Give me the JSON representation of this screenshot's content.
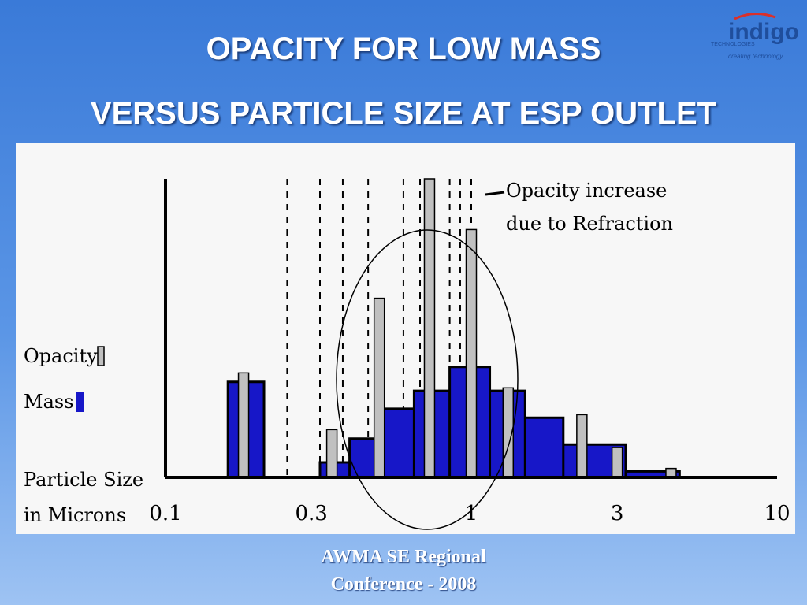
{
  "slide": {
    "title_line1": "OPACITY FOR LOW MASS",
    "title_line2": "VERSUS PARTICLE SIZE AT ESP OUTLET",
    "footer_line1": "AWMA SE Regional",
    "footer_line2": "Conference - 2008"
  },
  "logo": {
    "name": "indigo",
    "sub": "TECHNOLOGIES",
    "tagline": "creating technology",
    "colors": {
      "brand": "#1f4e9c",
      "arc": "#d9302a"
    }
  },
  "colors": {
    "mass": "#1717c8",
    "opacity": "#c0c0c0",
    "axis": "#000000"
  },
  "chart_data": {
    "type": "bar",
    "title": "",
    "x_scale": "log",
    "xlim": [
      0.1,
      10
    ],
    "x_ticks": [
      {
        "value": 0.1,
        "label": "0.1"
      },
      {
        "value": 0.3,
        "label": "0.3"
      },
      {
        "value": 1,
        "label": "1"
      },
      {
        "value": 3,
        "label": "3"
      },
      {
        "value": 10,
        "label": "10"
      }
    ],
    "xlabel_line1": "Particle Size",
    "xlabel_line2": "in Microns",
    "legend": [
      {
        "name": "Opacity",
        "color": "#c0c0c0"
      },
      {
        "name": "Mass",
        "color": "#1717c8"
      }
    ],
    "annotation": {
      "line1": "Opacity increase",
      "line2": "due to Refraction"
    },
    "mass_bins": [
      {
        "x0": 0.16,
        "x1": 0.21,
        "value": 32
      },
      {
        "x0": 0.32,
        "x1": 0.4,
        "value": 5
      },
      {
        "x0": 0.4,
        "x1": 0.5,
        "value": 13
      },
      {
        "x0": 0.5,
        "x1": 0.65,
        "value": 23
      },
      {
        "x0": 0.65,
        "x1": 0.85,
        "value": 29
      },
      {
        "x0": 0.85,
        "x1": 1.15,
        "value": 37
      },
      {
        "x0": 1.15,
        "x1": 1.5,
        "value": 29
      },
      {
        "x0": 1.5,
        "x1": 2.0,
        "value": 20
      },
      {
        "x0": 2.0,
        "x1": 3.2,
        "value": 11
      },
      {
        "x0": 3.2,
        "x1": 4.8,
        "value": 2
      }
    ],
    "opacity_bars": [
      {
        "x": 0.18,
        "value": 35
      },
      {
        "x": 0.35,
        "value": 16
      },
      {
        "x": 0.5,
        "value": 60
      },
      {
        "x": 0.73,
        "value": 100
      },
      {
        "x": 1.0,
        "value": 83
      },
      {
        "x": 1.32,
        "value": 30
      },
      {
        "x": 2.3,
        "value": 21
      },
      {
        "x": 3.0,
        "value": 10
      },
      {
        "x": 4.5,
        "value": 3
      }
    ],
    "reference_lines": [
      0.25,
      0.32,
      0.38,
      0.46,
      0.6,
      0.68,
      0.85,
      0.92,
      1.0
    ]
  }
}
